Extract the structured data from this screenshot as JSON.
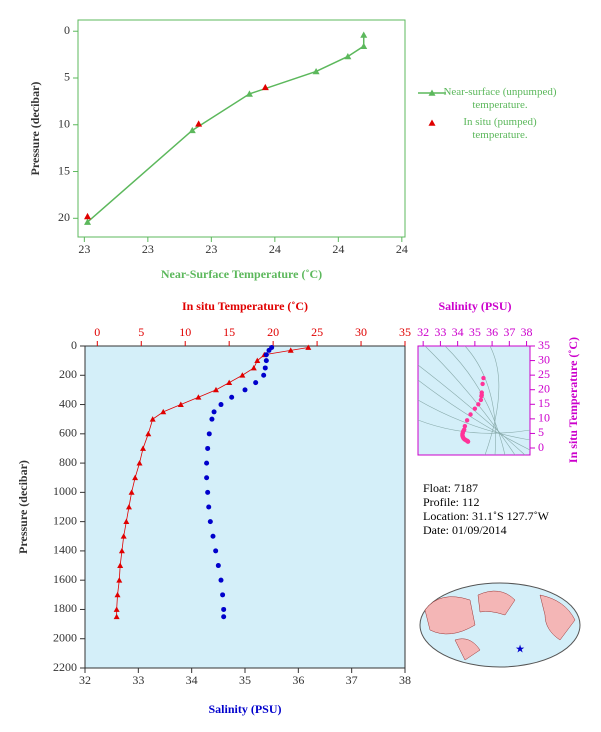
{
  "chart_data": [
    {
      "type": "line",
      "xlabel": "Near-Surface Temperature (˚C)",
      "ylabel": "Pressure (decibar)",
      "xlim": [
        22.98,
        24.01
      ],
      "xticks": [
        {
          "value": 23.0,
          "label": "23"
        },
        {
          "value": 23.2,
          "label": "23"
        },
        {
          "value": 23.4,
          "label": "23"
        },
        {
          "value": 23.6,
          "label": "24"
        },
        {
          "value": 23.8,
          "label": "24"
        },
        {
          "value": 24.0,
          "label": "24"
        }
      ],
      "ylim": [
        22,
        -1.2
      ],
      "yticks": [
        0,
        5,
        10,
        15,
        20
      ],
      "series": [
        {
          "name": "Near-surface (unpumped) temperature.",
          "color": "#5cb85c",
          "line": true,
          "x": [
            23.01,
            23.34,
            23.52,
            23.73,
            23.83,
            23.88,
            23.88
          ],
          "values": [
            20.4,
            10.6,
            6.7,
            4.3,
            2.7,
            1.6,
            0.4
          ]
        },
        {
          "name": "In situ (pumped) temperature.",
          "color": "#e00000",
          "line": false,
          "x": [
            23.01,
            23.36,
            23.57
          ],
          "values": [
            19.8,
            9.9,
            6.0
          ]
        }
      ]
    },
    {
      "type": "profile",
      "ylabel": "Pressure (decibar)",
      "ylim": [
        2200,
        0
      ],
      "yticks": [
        0,
        200,
        400,
        600,
        800,
        1000,
        1200,
        1400,
        1600,
        1800,
        2000,
        2200
      ],
      "x2label": "In situ Temperature (˚C)",
      "x2lim": [
        -1.4,
        35
      ],
      "x2ticks": [
        0,
        5,
        10,
        15,
        20,
        25,
        30,
        35
      ],
      "xlabel": "Salinity (PSU)",
      "xlim": [
        32,
        38
      ],
      "xticks": [
        32,
        33,
        34,
        35,
        36,
        37,
        38
      ],
      "y": [
        10,
        30,
        60,
        100,
        150,
        200,
        250,
        300,
        350,
        400,
        450,
        500,
        600,
        700,
        800,
        900,
        1000,
        1100,
        1200,
        1300,
        1400,
        1500,
        1600,
        1700,
        1800,
        1850
      ],
      "series": [
        {
          "color": "#e00000",
          "marker": "triangle",
          "axis": "x2",
          "values": [
            24,
            22,
            19,
            18.2,
            17.8,
            16.5,
            15,
            13.5,
            11.5,
            9.5,
            7.5,
            6.3,
            5.8,
            5.2,
            4.8,
            4.3,
            3.9,
            3.6,
            3.3,
            3.0,
            2.8,
            2.6,
            2.5,
            2.3,
            2.2,
            2.2
          ]
        },
        {
          "color": "#0000cc",
          "marker": "dot",
          "axis": "x",
          "values": [
            35.5,
            35.45,
            35.4,
            35.4,
            35.38,
            35.35,
            35.2,
            35.0,
            34.75,
            34.55,
            34.42,
            34.38,
            34.33,
            34.3,
            34.28,
            34.28,
            34.3,
            34.32,
            34.35,
            34.4,
            34.45,
            34.5,
            34.55,
            34.58,
            34.6,
            34.6
          ]
        }
      ]
    },
    {
      "type": "ts",
      "xlabel": "Salinity (PSU)",
      "ylabel": "In situ Temperature (˚C)",
      "color": "#cc00cc",
      "point_color": "#ff3399",
      "xlim": [
        31.7,
        38.2
      ],
      "xticks": [
        32,
        33,
        34,
        35,
        36,
        37,
        38
      ],
      "ylim": [
        -2.4,
        35
      ],
      "yticks": [
        0,
        5,
        10,
        15,
        20,
        25,
        30,
        35
      ]
    }
  ],
  "info": [
    "Float:  7187",
    "Profile:  112",
    "Location:  31.1˚S  127.7˚W",
    "Date:  01/09/2014"
  ]
}
